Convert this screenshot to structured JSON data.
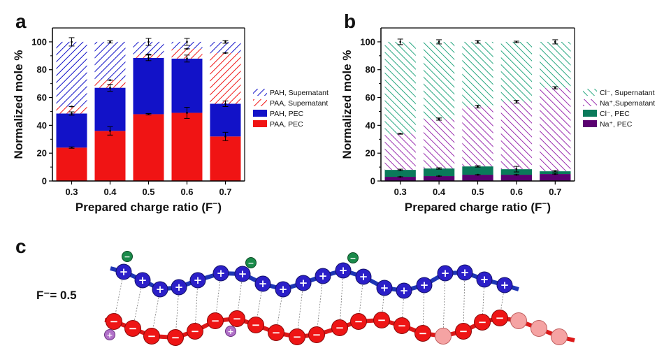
{
  "colors": {
    "pah": "#1212c8",
    "paa": "#f01414",
    "cl": "#0a7a5a",
    "cl_hatch": "#2aa882",
    "na": "#5a0070",
    "na_hatch": "#9a30b0",
    "chain_blue": "#1e35b5",
    "chain_red": "#dd1818",
    "pink_bead": "#f5a3a3",
    "counter_green": "#1a8a4a",
    "counter_purple": "#b070c8"
  },
  "chart_data": [
    {
      "panel": "a",
      "type": "bar",
      "stacked": true,
      "xlabel": "Prepared charge ratio (F",
      "xlabel_sup": "−",
      "xlabel_close": ")",
      "ylabel": "Normalized mole %",
      "ylim": [
        0,
        110
      ],
      "yticks": [
        0,
        20,
        40,
        60,
        80,
        100
      ],
      "categories": [
        "0.3",
        "0.4",
        "0.5",
        "0.6",
        "0.7"
      ],
      "series": [
        {
          "name": "PAA, PEC",
          "style": "solid",
          "color": "paa",
          "values": [
            24,
            36,
            48,
            49,
            32
          ],
          "errors": [
            0.5,
            3,
            0.5,
            4,
            3
          ]
        },
        {
          "name": "PAH, PEC",
          "style": "solid",
          "color": "pah",
          "values": [
            24.5,
            31,
            40.5,
            39,
            23.5
          ],
          "errors": [
            1.2,
            2.5,
            2,
            2.5,
            2
          ]
        },
        {
          "name": "PAA, Supernatant",
          "style": "hatch",
          "color": "paa",
          "values": [
            5,
            5.5,
            2.5,
            7,
            36.5
          ],
          "errors": [
            0,
            0,
            0,
            0,
            0
          ]
        },
        {
          "name": "PAH, Supernatant",
          "style": "hatch",
          "color": "pah",
          "values": [
            46.5,
            27.5,
            9,
            5,
            8
          ],
          "errors": [
            3,
            0.8,
            2.5,
            2.5,
            1
          ]
        }
      ],
      "legend": [
        "PAH, Supernatant",
        "PAA, Supernatant",
        "PAH, PEC",
        "PAA, PEC"
      ]
    },
    {
      "panel": "b",
      "type": "bar",
      "stacked": true,
      "xlabel": "Prepared charge ratio (F",
      "xlabel_sup": "−",
      "xlabel_close": ")",
      "ylabel": "Normalized mole %",
      "ylim": [
        0,
        110
      ],
      "yticks": [
        0,
        20,
        40,
        60,
        80,
        100
      ],
      "categories": [
        "0.3",
        "0.4",
        "0.5",
        "0.6",
        "0.7"
      ],
      "series": [
        {
          "name": "Na⁺, PEC",
          "style": "solid",
          "color": "na",
          "values": [
            3,
            3.5,
            4.5,
            4.5,
            5
          ],
          "errors": [
            0,
            0,
            0,
            0,
            0
          ]
        },
        {
          "name": "Cl⁻, PEC",
          "style": "solid",
          "color": "cl",
          "values": [
            5,
            5.5,
            6,
            4,
            2
          ],
          "errors": [
            0.5,
            0.5,
            0.5,
            2,
            0.5
          ]
        },
        {
          "name": "Na⁺,Supernatant",
          "style": "hatch",
          "color": "na",
          "values": [
            26,
            35.5,
            43,
            48.5,
            60
          ],
          "errors": [
            0.4,
            0.8,
            1,
            1,
            0.8
          ]
        },
        {
          "name": "Cl⁻, Supernatant",
          "style": "hatch",
          "color": "cl",
          "values": [
            66,
            55.5,
            46.5,
            43,
            33
          ],
          "errors": [
            2,
            1.5,
            1,
            0.5,
            1.5
          ]
        }
      ],
      "legend": [
        "Cl⁻, Supernatant",
        "Na⁺,Supernatant",
        "Cl⁻, PEC",
        "Na⁺, PEC"
      ]
    }
  ],
  "panel_c": {
    "letter": "c",
    "ratio_label": "F⁻= 0.5",
    "plus": "+",
    "minus": "−"
  }
}
